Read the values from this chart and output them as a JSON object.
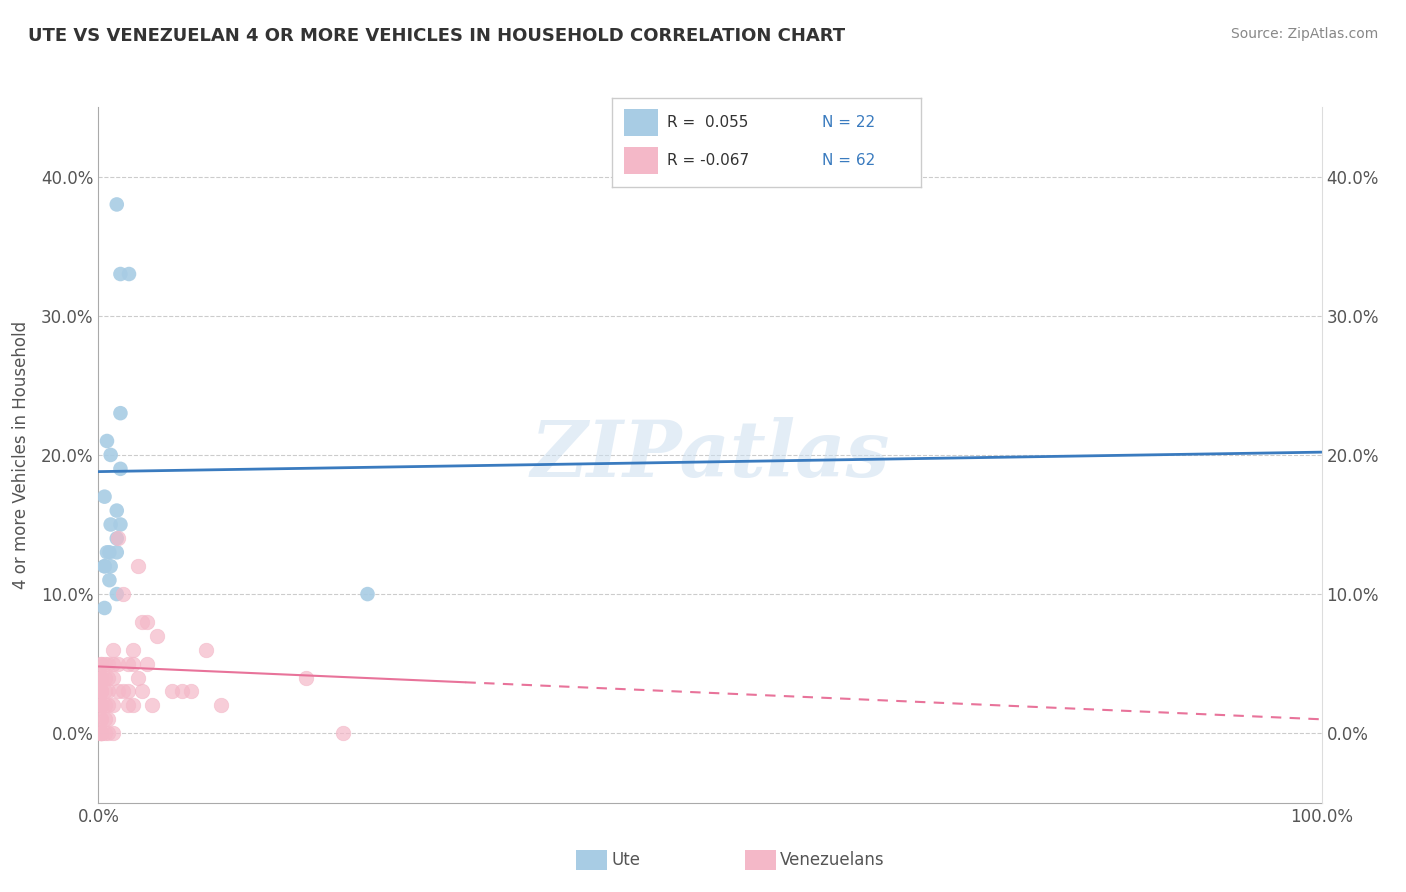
{
  "title": "UTE VS VENEZUELAN 4 OR MORE VEHICLES IN HOUSEHOLD CORRELATION CHART",
  "source": "Source: ZipAtlas.com",
  "ylabel": "4 or more Vehicles in Household",
  "xlim": [
    0,
    100
  ],
  "ylim": [
    -5,
    45
  ],
  "ytick_values": [
    0,
    10,
    20,
    30,
    40
  ],
  "xtick_values": [
    0,
    10,
    20,
    30,
    40,
    50,
    60,
    70,
    80,
    90,
    100
  ],
  "blue_color": "#a8cce4",
  "pink_color": "#f4b8c8",
  "blue_line_color": "#3a7bbf",
  "pink_line_color": "#e8739a",
  "watermark_text": "ZIPatlas",
  "blue_line_x0": 0,
  "blue_line_y0": 18.8,
  "blue_line_x1": 100,
  "blue_line_y1": 20.2,
  "pink_line_x0": 0,
  "pink_line_y0": 4.8,
  "pink_line_x1": 100,
  "pink_line_y1": 1.0,
  "blue_scatter_x": [
    1.5,
    1.8,
    2.5,
    0.7,
    1.0,
    1.8,
    0.5,
    1.5,
    1.8,
    1.0,
    0.9,
    1.5,
    1.5,
    0.7,
    1.0,
    0.5,
    0.5,
    0.9,
    1.5,
    22.0,
    0.5,
    1.8
  ],
  "blue_scatter_y": [
    38,
    33,
    33,
    21,
    20,
    23,
    17,
    16,
    15,
    15,
    13,
    13,
    14,
    13,
    12,
    12,
    12,
    11,
    10,
    10,
    9,
    19
  ],
  "pink_scatter_x": [
    0.2,
    0.2,
    0.2,
    0.2,
    0.2,
    0.2,
    0.2,
    0.2,
    0.2,
    0.2,
    0.2,
    0.2,
    0.2,
    0.2,
    0.2,
    0.2,
    0.2,
    0.2,
    0.2,
    0.5,
    0.5,
    0.5,
    0.5,
    0.5,
    0.5,
    0.8,
    0.8,
    0.8,
    0.8,
    0.8,
    0.8,
    1.2,
    1.2,
    1.2,
    1.2,
    1.2,
    1.6,
    1.6,
    1.6,
    2.0,
    2.0,
    2.4,
    2.4,
    2.4,
    2.8,
    2.8,
    2.8,
    3.2,
    3.2,
    3.6,
    3.6,
    4.0,
    4.0,
    4.4,
    4.8,
    6.0,
    6.8,
    7.6,
    8.8,
    10.0,
    17.0,
    20.0
  ],
  "pink_scatter_y": [
    5,
    5,
    4,
    4,
    4,
    3,
    3,
    3,
    3,
    2,
    2,
    2,
    1,
    1,
    0,
    0,
    0,
    0,
    0,
    5,
    4,
    3,
    2,
    1,
    0,
    5,
    4,
    3,
    2,
    1,
    0,
    6,
    5,
    4,
    2,
    0,
    14,
    5,
    3,
    10,
    3,
    5,
    3,
    2,
    6,
    5,
    2,
    12,
    4,
    8,
    3,
    8,
    5,
    2,
    7,
    3,
    3,
    3,
    6,
    2,
    4,
    0
  ]
}
